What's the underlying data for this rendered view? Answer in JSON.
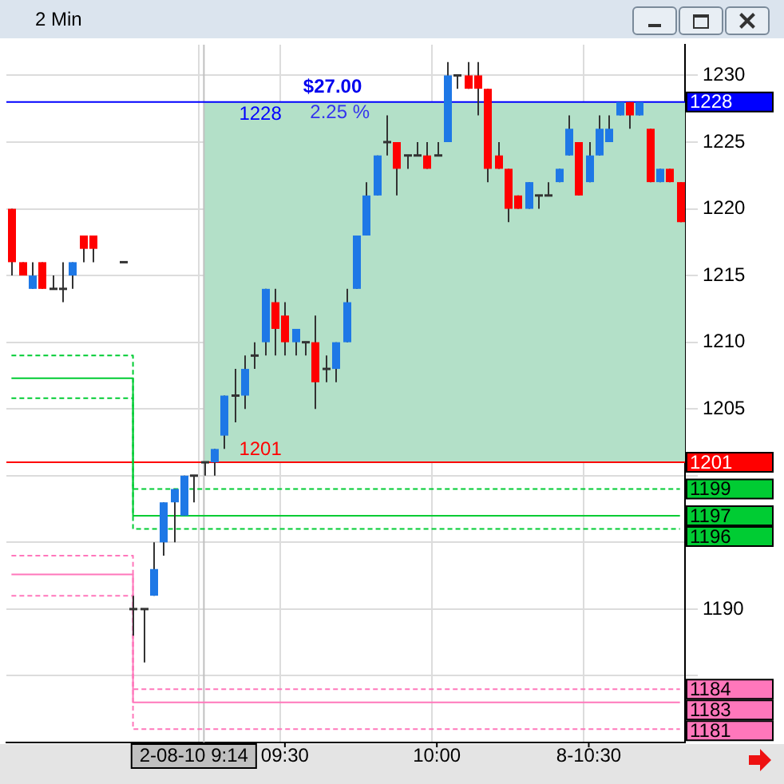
{
  "chart_data": {
    "type": "candlestick",
    "title": "2 Min",
    "categories": [
      null,
      null,
      null,
      null,
      null,
      null,
      null,
      null,
      null,
      null,
      null,
      null,
      null,
      null,
      null,
      null,
      null,
      null,
      null,
      "2-08-10 9:14",
      null,
      null,
      null,
      null,
      null,
      null,
      null,
      "09:30",
      null,
      null,
      null,
      null,
      null,
      null,
      null,
      null,
      null,
      null,
      null,
      null,
      null,
      null,
      "10:00",
      null,
      null,
      null,
      null,
      null,
      null,
      null,
      null,
      null,
      null,
      null,
      null,
      null,
      null,
      "8-10:30",
      null,
      null,
      null,
      null,
      null,
      null,
      null,
      null,
      null
    ],
    "ohlc": [
      [
        1220,
        1220,
        1215,
        1216
      ],
      [
        1216,
        1216,
        1215,
        1215
      ],
      [
        1214,
        1216,
        1214,
        1215
      ],
      [
        1216,
        1216,
        1214,
        1214
      ],
      [
        1214,
        1215,
        1214,
        1214
      ],
      [
        1214,
        1216,
        1213,
        1214
      ],
      [
        1215,
        1216,
        1214,
        1216
      ],
      [
        1218,
        1218,
        1216,
        1217
      ],
      [
        1218,
        1218,
        1216,
        1217
      ],
      null,
      null,
      [
        1216,
        1216,
        1216,
        1216
      ],
      [
        1190,
        1191,
        1188,
        1190
      ],
      [
        1190,
        1190,
        1186,
        1190
      ],
      [
        1191,
        1195,
        1191,
        1193
      ],
      [
        1195,
        1198,
        1194,
        1198
      ],
      [
        1198,
        1199,
        1195,
        1199
      ],
      [
        1197,
        1200,
        1197,
        1200
      ],
      [
        1200,
        1200,
        1198,
        1200
      ],
      [
        1201,
        1201,
        1200,
        1201
      ],
      [
        1201,
        1202,
        1200,
        1202
      ],
      [
        1203,
        1206,
        1202,
        1206
      ],
      [
        1206,
        1208,
        1204,
        1206
      ],
      [
        1206,
        1209,
        1205,
        1208
      ],
      [
        1209,
        1210,
        1208,
        1209
      ],
      [
        1210,
        1214,
        1209,
        1214
      ],
      [
        1213,
        1214,
        1209,
        1211
      ],
      [
        1212,
        1213,
        1209,
        1210
      ],
      [
        1210,
        1211,
        1209,
        1211
      ],
      [
        1210,
        1210,
        1209,
        1210
      ],
      [
        1210,
        1212,
        1205,
        1207
      ],
      [
        1208,
        1209,
        1207,
        1208
      ],
      [
        1208,
        1210,
        1207,
        1210
      ],
      [
        1210,
        1214,
        1210,
        1213
      ],
      [
        1214,
        1218,
        1214,
        1218
      ],
      [
        1218,
        1222,
        1218,
        1221
      ],
      [
        1221,
        1224,
        1221,
        1224
      ],
      [
        1225,
        1227,
        1224,
        1225
      ],
      [
        1225,
        1225,
        1221,
        1223
      ],
      [
        1224,
        1224,
        1223,
        1224
      ],
      [
        1224,
        1225,
        1224,
        1224
      ],
      [
        1224,
        1225,
        1223,
        1223
      ],
      [
        1224,
        1225,
        1224,
        1224
      ],
      [
        1225,
        1231,
        1225,
        1230
      ],
      [
        1230,
        1230,
        1229,
        1230
      ],
      [
        1230,
        1231,
        1229,
        1229
      ],
      [
        1230,
        1231,
        1227,
        1229
      ],
      [
        1229,
        1229,
        1222,
        1223
      ],
      [
        1224,
        1225,
        1223,
        1223
      ],
      [
        1223,
        1223,
        1219,
        1220
      ],
      [
        1221,
        1221,
        1220,
        1220
      ],
      [
        1220,
        1222,
        1220,
        1222
      ],
      [
        1221,
        1221,
        1220,
        1221
      ],
      [
        1221,
        1222,
        1221,
        1221
      ],
      [
        1222,
        1223,
        1222,
        1223
      ],
      [
        1224,
        1227,
        1224,
        1226
      ],
      [
        1225,
        1225,
        1221,
        1221
      ],
      [
        1222,
        1225,
        1222,
        1224
      ],
      [
        1224,
        1227,
        1224,
        1226
      ],
      [
        1225,
        1227,
        1225,
        1226
      ],
      [
        1227,
        1228,
        1227,
        1228
      ],
      [
        1228,
        1228,
        1226,
        1227
      ],
      [
        1227,
        1228,
        1227,
        1228
      ],
      [
        1226,
        1226,
        1222,
        1222
      ],
      [
        1222,
        1223,
        1222,
        1223
      ],
      [
        1223,
        1223,
        1222,
        1222
      ],
      [
        1222,
        1222,
        1219,
        1219
      ]
    ],
    "colors": [
      "#ff0000",
      "#ff0000",
      "#1e78e6",
      "#ff0000",
      "#333333",
      "#333333",
      "#1e78e6",
      "#ff0000",
      "#ff0000",
      null,
      null,
      "#333333",
      "#333333",
      "#333333",
      "#1e78e6",
      "#1e78e6",
      "#1e78e6",
      "#1e78e6",
      "#333333",
      "#333333",
      "#1e78e6",
      "#1e78e6",
      "#333333",
      "#1e78e6",
      "#333333",
      "#1e78e6",
      "#ff0000",
      "#ff0000",
      "#1e78e6",
      "#333333",
      "#ff0000",
      "#333333",
      "#1e78e6",
      "#1e78e6",
      "#1e78e6",
      "#1e78e6",
      "#1e78e6",
      "#333333",
      "#ff0000",
      "#333333",
      "#333333",
      "#ff0000",
      "#333333",
      "#1e78e6",
      "#333333",
      "#ff0000",
      "#ff0000",
      "#ff0000",
      "#ff0000",
      "#ff0000",
      "#ff0000",
      "#1e78e6",
      "#333333",
      "#333333",
      "#1e78e6",
      "#1e78e6",
      "#ff0000",
      "#1e78e6",
      "#1e78e6",
      "#1e78e6",
      "#1e78e6",
      "#ff0000",
      "#1e78e6",
      "#ff0000",
      "#1e78e6",
      "#ff0000",
      "#ff0000"
    ],
    "series": [
      {
        "type": "step",
        "color": "#00cc33",
        "line_style": "dashed",
        "value_labels": [
          null,
          null,
          null,
          null,
          null,
          null,
          null,
          null,
          null,
          null,
          null,
          null,
          null,
          null,
          null,
          null,
          null,
          null,
          null,
          null,
          null,
          null,
          null,
          null,
          null,
          null,
          null,
          null,
          null,
          null,
          null,
          null,
          null,
          null,
          null,
          null,
          null,
          null,
          null,
          null,
          null,
          null,
          null,
          null,
          null,
          null,
          null,
          null,
          null,
          null,
          null,
          null,
          null,
          null,
          null,
          null,
          null,
          null,
          null,
          null,
          null,
          null,
          null,
          null,
          null,
          null,
          "1199"
        ],
        "values": [
          1209,
          1209,
          1209,
          1209,
          1209,
          1209,
          1209,
          1209,
          1209,
          1209,
          1209,
          1209,
          1199,
          1199,
          1199,
          1199,
          1199,
          1199,
          1199,
          1199,
          1199,
          1199,
          1199,
          1199,
          1199,
          1199,
          1199,
          1199,
          1199,
          1199,
          1199,
          1199,
          1199,
          1199,
          1199,
          1199,
          1199,
          1199,
          1199,
          1199,
          1199,
          1199,
          1199,
          1199,
          1199,
          1199,
          1199,
          1199,
          1199,
          1199,
          1199,
          1199,
          1199,
          1199,
          1199,
          1199,
          1199,
          1199,
          1199,
          1199,
          1199,
          1199,
          1199,
          1199,
          1199,
          1199,
          1199
        ]
      },
      {
        "type": "step",
        "color": "#00cc33",
        "line_style": "solid",
        "value_labels": [
          null,
          null,
          null,
          null,
          null,
          null,
          null,
          null,
          null,
          null,
          null,
          null,
          null,
          null,
          null,
          null,
          null,
          null,
          null,
          null,
          null,
          null,
          null,
          null,
          null,
          null,
          null,
          null,
          null,
          null,
          null,
          null,
          null,
          null,
          null,
          null,
          null,
          null,
          null,
          null,
          null,
          null,
          null,
          null,
          null,
          null,
          null,
          null,
          null,
          null,
          null,
          null,
          null,
          null,
          null,
          null,
          null,
          null,
          null,
          null,
          null,
          null,
          null,
          null,
          null,
          null,
          "1197"
        ],
        "values": [
          1207.3,
          1207.3,
          1207.3,
          1207.3,
          1207.3,
          1207.3,
          1207.3,
          1207.3,
          1207.3,
          1207.3,
          1207.3,
          1207.3,
          1197,
          1197,
          1197,
          1197,
          1197,
          1197,
          1197,
          1197,
          1197,
          1197,
          1197,
          1197,
          1197,
          1197,
          1197,
          1197,
          1197,
          1197,
          1197,
          1197,
          1197,
          1197,
          1197,
          1197,
          1197,
          1197,
          1197,
          1197,
          1197,
          1197,
          1197,
          1197,
          1197,
          1197,
          1197,
          1197,
          1197,
          1197,
          1197,
          1197,
          1197,
          1197,
          1197,
          1197,
          1197,
          1197,
          1197,
          1197,
          1197,
          1197,
          1197,
          1197,
          1197,
          1197,
          1197
        ]
      },
      {
        "type": "step",
        "color": "#00cc33",
        "line_style": "dashed",
        "value_labels": [
          null,
          null,
          null,
          null,
          null,
          null,
          null,
          null,
          null,
          null,
          null,
          null,
          null,
          null,
          null,
          null,
          null,
          null,
          null,
          null,
          null,
          null,
          null,
          null,
          null,
          null,
          null,
          null,
          null,
          null,
          null,
          null,
          null,
          null,
          null,
          null,
          null,
          null,
          null,
          null,
          null,
          null,
          null,
          null,
          null,
          null,
          null,
          null,
          null,
          null,
          null,
          null,
          null,
          null,
          null,
          null,
          null,
          null,
          null,
          null,
          null,
          null,
          null,
          null,
          null,
          null,
          "1196"
        ],
        "values": [
          1205.8,
          1205.8,
          1205.8,
          1205.8,
          1205.8,
          1205.8,
          1205.8,
          1205.8,
          1205.8,
          1205.8,
          1205.8,
          1205.8,
          1196,
          1196,
          1196,
          1196,
          1196,
          1196,
          1196,
          1196,
          1196,
          1196,
          1196,
          1196,
          1196,
          1196,
          1196,
          1196,
          1196,
          1196,
          1196,
          1196,
          1196,
          1196,
          1196,
          1196,
          1196,
          1196,
          1196,
          1196,
          1196,
          1196,
          1196,
          1196,
          1196,
          1196,
          1196,
          1196,
          1196,
          1196,
          1196,
          1196,
          1196,
          1196,
          1196,
          1196,
          1196,
          1196,
          1196,
          1196,
          1196,
          1196,
          1196,
          1196,
          1196,
          1196,
          1196
        ]
      },
      {
        "type": "step",
        "color": "#ff77bb",
        "line_style": "dashed",
        "value_labels": [
          null,
          null,
          null,
          null,
          null,
          null,
          null,
          null,
          null,
          null,
          null,
          null,
          null,
          null,
          null,
          null,
          null,
          null,
          null,
          null,
          null,
          null,
          null,
          null,
          null,
          null,
          null,
          null,
          null,
          null,
          null,
          null,
          null,
          null,
          null,
          null,
          null,
          null,
          null,
          null,
          null,
          null,
          null,
          null,
          null,
          null,
          null,
          null,
          null,
          null,
          null,
          null,
          null,
          null,
          null,
          null,
          null,
          null,
          null,
          null,
          null,
          null,
          null,
          null,
          null,
          null,
          "1184"
        ],
        "values": [
          1194,
          1194,
          1194,
          1194,
          1194,
          1194,
          1194,
          1194,
          1194,
          1194,
          1194,
          1194,
          1184,
          1184,
          1184,
          1184,
          1184,
          1184,
          1184,
          1184,
          1184,
          1184,
          1184,
          1184,
          1184,
          1184,
          1184,
          1184,
          1184,
          1184,
          1184,
          1184,
          1184,
          1184,
          1184,
          1184,
          1184,
          1184,
          1184,
          1184,
          1184,
          1184,
          1184,
          1184,
          1184,
          1184,
          1184,
          1184,
          1184,
          1184,
          1184,
          1184,
          1184,
          1184,
          1184,
          1184,
          1184,
          1184,
          1184,
          1184,
          1184,
          1184,
          1184,
          1184,
          1184,
          1184,
          1184
        ]
      },
      {
        "type": "step",
        "color": "#ff77bb",
        "line_style": "solid",
        "value_labels": [
          null,
          null,
          null,
          null,
          null,
          null,
          null,
          null,
          null,
          null,
          null,
          null,
          null,
          null,
          null,
          null,
          null,
          null,
          null,
          null,
          null,
          null,
          null,
          null,
          null,
          null,
          null,
          null,
          null,
          null,
          null,
          null,
          null,
          null,
          null,
          null,
          null,
          null,
          null,
          null,
          null,
          null,
          null,
          null,
          null,
          null,
          null,
          null,
          null,
          null,
          null,
          null,
          null,
          null,
          null,
          null,
          null,
          null,
          null,
          null,
          null,
          null,
          null,
          null,
          null,
          null,
          "1183"
        ],
        "values": [
          1192.6,
          1192.6,
          1192.6,
          1192.6,
          1192.6,
          1192.6,
          1192.6,
          1192.6,
          1192.6,
          1192.6,
          1192.6,
          1192.6,
          1183,
          1183,
          1183,
          1183,
          1183,
          1183,
          1183,
          1183,
          1183,
          1183,
          1183,
          1183,
          1183,
          1183,
          1183,
          1183,
          1183,
          1183,
          1183,
          1183,
          1183,
          1183,
          1183,
          1183,
          1183,
          1183,
          1183,
          1183,
          1183,
          1183,
          1183,
          1183,
          1183,
          1183,
          1183,
          1183,
          1183,
          1183,
          1183,
          1183,
          1183,
          1183,
          1183,
          1183,
          1183,
          1183,
          1183,
          1183,
          1183,
          1183,
          1183,
          1183,
          1183,
          1183,
          1183
        ]
      },
      {
        "type": "step",
        "color": "#ff77bb",
        "line_style": "dashed",
        "value_labels": [
          null,
          null,
          null,
          null,
          null,
          null,
          null,
          null,
          null,
          null,
          null,
          null,
          null,
          null,
          null,
          null,
          null,
          null,
          null,
          null,
          null,
          null,
          null,
          null,
          null,
          null,
          null,
          null,
          null,
          null,
          null,
          null,
          null,
          null,
          null,
          null,
          null,
          null,
          null,
          null,
          null,
          null,
          null,
          null,
          null,
          null,
          null,
          null,
          null,
          null,
          null,
          null,
          null,
          null,
          null,
          null,
          null,
          null,
          null,
          null,
          null,
          null,
          null,
          null,
          null,
          null,
          "1181"
        ],
        "values": [
          1191,
          1191,
          1191,
          1191,
          1191,
          1191,
          1191,
          1191,
          1191,
          1191,
          1191,
          1191,
          1181,
          1181,
          1181,
          1181,
          1181,
          1181,
          1181,
          1181,
          1181,
          1181,
          1181,
          1181,
          1181,
          1181,
          1181,
          1181,
          1181,
          1181,
          1181,
          1181,
          1181,
          1181,
          1181,
          1181,
          1181,
          1181,
          1181,
          1181,
          1181,
          1181,
          1181,
          1181,
          1181,
          1181,
          1181,
          1181,
          1181,
          1181,
          1181,
          1181,
          1181,
          1181,
          1181,
          1181,
          1181,
          1181,
          1181,
          1181,
          1181,
          1181,
          1181,
          1181,
          1181,
          1181,
          1181
        ]
      }
    ],
    "ylim": [
      1180,
      1232.3
    ],
    "yticks": [
      {
        "value": 1185,
        "label": null
      },
      1190,
      {
        "value": 1195,
        "label": null
      },
      {
        "value": 1200,
        "label": null
      },
      1205,
      1210,
      1215,
      1220,
      1225,
      1230
    ],
    "grid": true,
    "legend": false,
    "bands": [
      {
        "axis": "y",
        "from": 1201,
        "to": 1228,
        "color": "#b3e0c8",
        "label": "$27.00"
      }
    ],
    "ref_lines": [
      {
        "axis": "x",
        "value": "2-08-10 9:14",
        "color": "#c0c0c0"
      },
      {
        "axis": "y",
        "value": 1228,
        "label": "1228",
        "color": "#0000ff"
      },
      {
        "axis": "y",
        "value": 1201,
        "label": "1201",
        "color": "#ff0000"
      }
    ],
    "annotations": [
      "2.25 %"
    ]
  }
}
